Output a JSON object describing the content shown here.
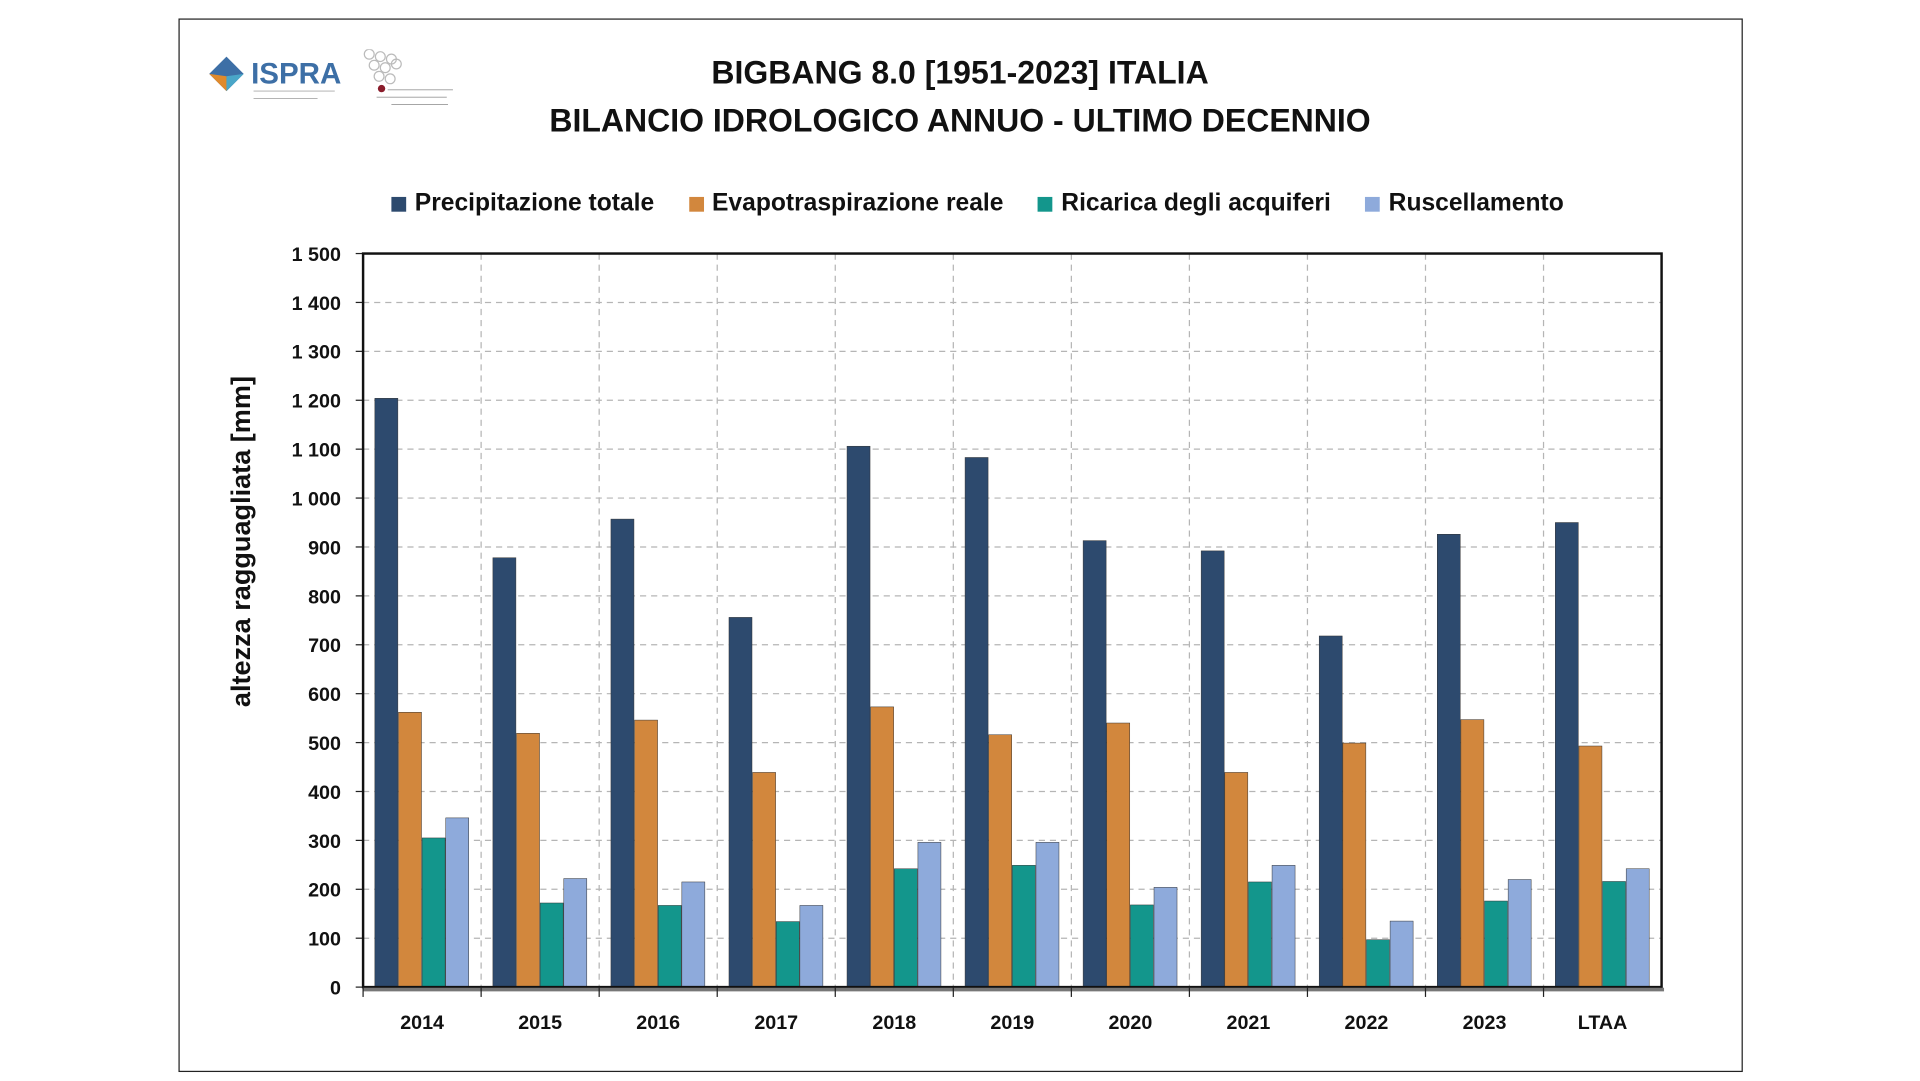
{
  "header": {
    "title_line1": "BIGBANG 8.0 [1951-2023] ITALIA",
    "title_line2": "BILANCIO IDROLOGICO ANNUO - ULTIMO DECENNIO",
    "logo_text": "ISPRA",
    "logo_subtext": "Istituto Superiore per la Protezione e la Ricerca Ambientale",
    "logo2_text": "Sistema Nazionale per la Protezione dell'Ambiente"
  },
  "chart_data": {
    "type": "bar",
    "title": "BIGBANG 8.0 [1951-2023] ITALIA — BILANCIO IDROLOGICO ANNUO - ULTIMO DECENNIO",
    "xlabel": "",
    "ylabel": "altezza ragguagliata  [mm]",
    "ylim": [
      0,
      1500
    ],
    "yticks": [
      0,
      100,
      200,
      300,
      400,
      500,
      600,
      700,
      800,
      900,
      1000,
      1100,
      1200,
      1300,
      1400,
      1500
    ],
    "ytick_labels": [
      "0",
      "100",
      "200",
      "300",
      "400",
      "500",
      "600",
      "700",
      "800",
      "900",
      "1 000",
      "1 100",
      "1 200",
      "1 300",
      "1 400",
      "1 500"
    ],
    "grid": true,
    "legend_position": "top",
    "categories": [
      "2014",
      "2015",
      "2016",
      "2017",
      "2018",
      "2019",
      "2020",
      "2021",
      "2022",
      "2023",
      "LTAA"
    ],
    "series": [
      {
        "name": "Precipitazione totale",
        "color": "#2d4a6e",
        "values": [
          1204,
          878,
          957,
          756,
          1106,
          1083,
          913,
          892,
          718,
          926,
          950
        ]
      },
      {
        "name": "Evapotraspirazione reale",
        "color": "#d2873d",
        "values": [
          562,
          519,
          546,
          439,
          573,
          516,
          540,
          439,
          499,
          547,
          493
        ]
      },
      {
        "name": "Ricarica degli acquiferi",
        "color": "#13968c",
        "values": [
          305,
          172,
          167,
          134,
          242,
          249,
          168,
          215,
          97,
          176,
          216
        ]
      },
      {
        "name": "Ruscellamento",
        "color": "#8eaadb",
        "values": [
          346,
          222,
          215,
          167,
          296,
          296,
          204,
          249,
          135,
          220,
          242
        ]
      }
    ]
  }
}
